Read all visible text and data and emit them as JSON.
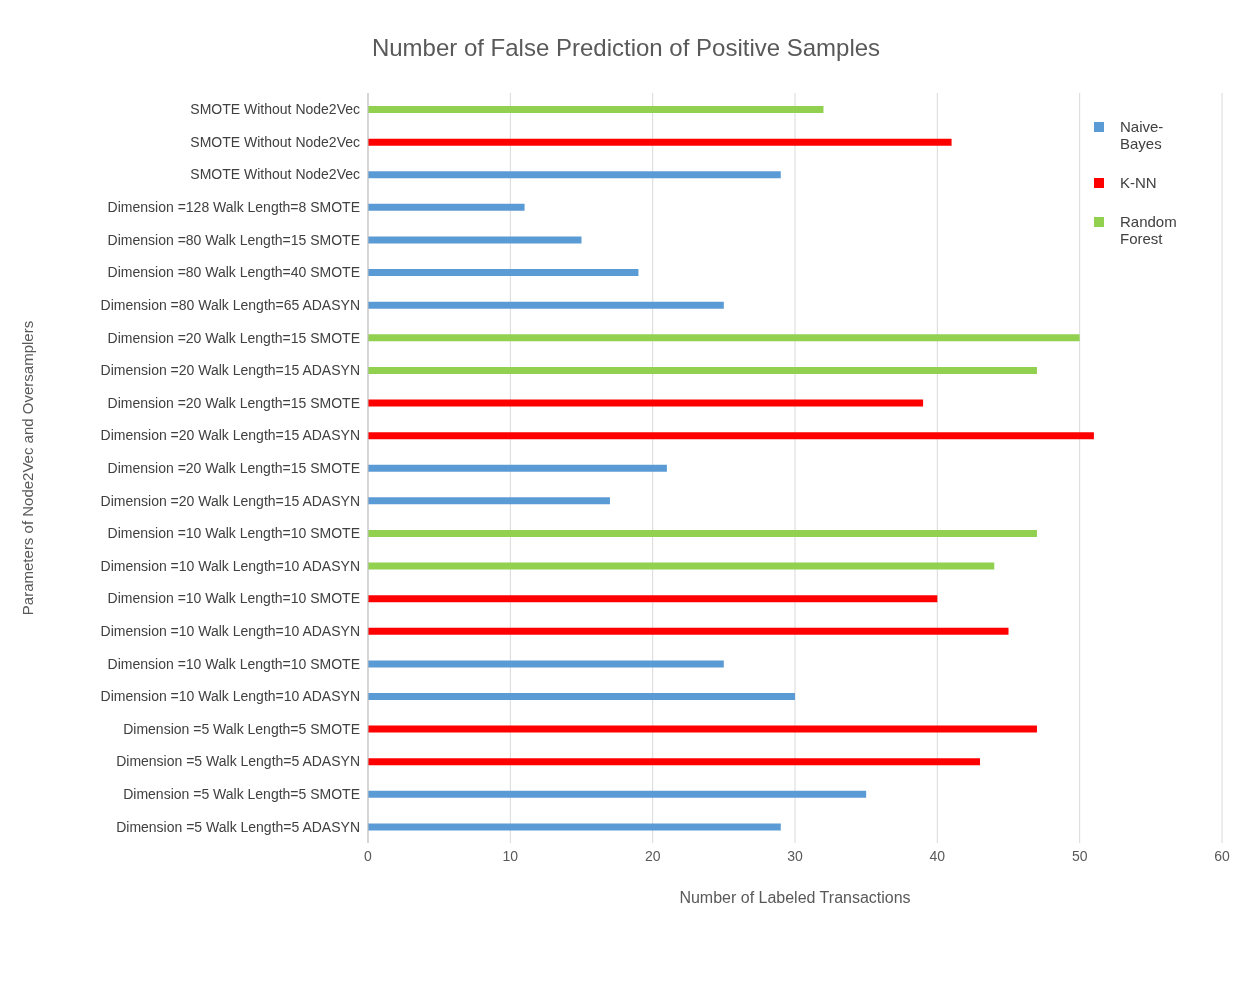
{
  "chart_data": {
    "type": "bar",
    "orientation": "horizontal",
    "stacked": true,
    "title": "Number of False Prediction of Positive Samples",
    "xlabel": "Number  of Labeled Transactions",
    "ylabel": "Parameters of Node2Vec and Oversamplers",
    "categories": [
      "SMOTE Without Node2Vec",
      "SMOTE Without Node2Vec",
      "SMOTE Without Node2Vec",
      "Dimension =128 Walk Length=8 SMOTE",
      "Dimension =80 Walk Length=15 SMOTE",
      "Dimension =80 Walk Length=40 SMOTE",
      "Dimension =80 Walk Length=65  ADASYN",
      "Dimension =20 Walk Length=15 SMOTE",
      "Dimension =20 Walk Length=15  ADASYN",
      "Dimension =20 Walk Length=15 SMOTE",
      "Dimension =20 Walk Length=15  ADASYN",
      "Dimension =20 Walk Length=15 SMOTE",
      "Dimension =20 Walk Length=15  ADASYN",
      "Dimension =10 Walk Length=10 SMOTE",
      "Dimension =10 Walk Length=10  ADASYN",
      "Dimension =10 Walk Length=10 SMOTE",
      "Dimension =10 Walk Length=10  ADASYN",
      "Dimension =10 Walk Length=10 SMOTE",
      "Dimension =10 Walk Length=10  ADASYN",
      "Dimension =5 Walk Length=5 SMOTE",
      "Dimension =5 Walk Length=5  ADASYN",
      "Dimension =5 Walk Length=5 SMOTE",
      "Dimension =5 Walk Length=5  ADASYN"
    ],
    "series": [
      {
        "name": "Naive-Bayes",
        "color": "#5b9bd5",
        "values": [
          null,
          null,
          29,
          11,
          15,
          19,
          25,
          null,
          null,
          null,
          null,
          21,
          17,
          null,
          null,
          null,
          null,
          25,
          30,
          null,
          null,
          35,
          29
        ]
      },
      {
        "name": "K-NN",
        "color": "#ff0000",
        "values": [
          null,
          41,
          null,
          null,
          null,
          null,
          null,
          null,
          null,
          39,
          51,
          null,
          null,
          null,
          null,
          40,
          45,
          null,
          null,
          47,
          43,
          null,
          null
        ]
      },
      {
        "name": "Random Forest",
        "color": "#92d050",
        "values": [
          32,
          null,
          null,
          null,
          null,
          null,
          null,
          50,
          47,
          null,
          null,
          null,
          null,
          47,
          44,
          null,
          null,
          null,
          null,
          null,
          null,
          null,
          null
        ]
      }
    ],
    "xlim": [
      0,
      60
    ],
    "xticks": [
      0,
      10,
      20,
      30,
      40,
      50,
      60
    ],
    "grid": "x",
    "legend": "top right"
  }
}
